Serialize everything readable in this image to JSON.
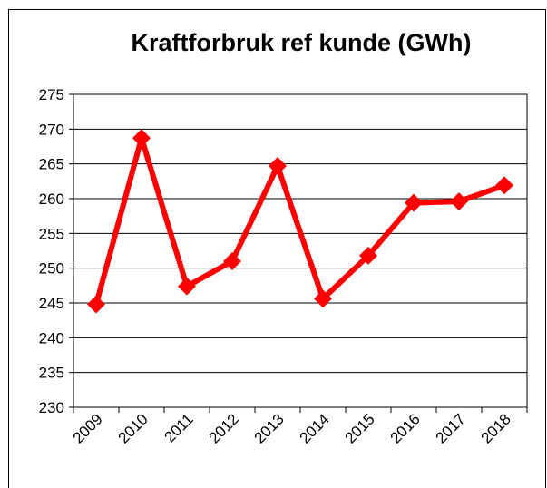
{
  "chart_data": {
    "type": "line",
    "title": "Kraftforbruk ref kunde (GWh)",
    "categories": [
      "2009",
      "2010",
      "2011",
      "2012",
      "2013",
      "2014",
      "2015",
      "2016",
      "2017",
      "2018"
    ],
    "series": [
      {
        "name": "Kraftforbruk",
        "color": "#ff0000",
        "values": [
          244.8,
          268.7,
          247.4,
          251.0,
          264.7,
          245.6,
          251.8,
          259.4,
          259.6,
          261.9
        ]
      }
    ],
    "ylim": [
      230,
      275
    ],
    "yticks": [
      230,
      235,
      240,
      245,
      250,
      255,
      260,
      265,
      270,
      275
    ],
    "grid": true
  }
}
